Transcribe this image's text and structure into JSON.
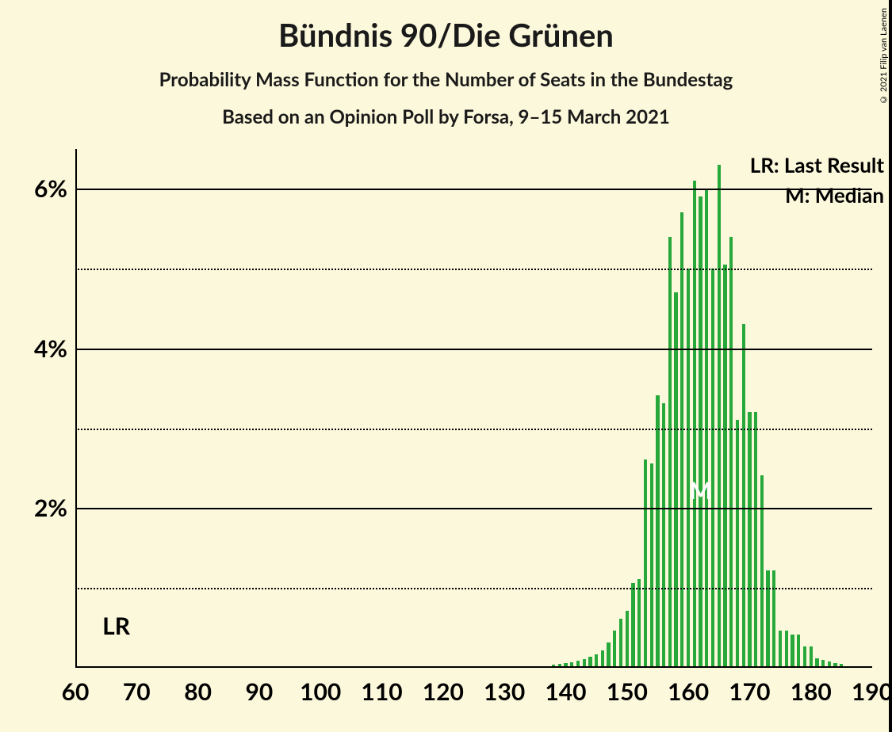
{
  "title": "Bündnis 90/Die Grünen",
  "subtitle": "Probability Mass Function for the Number of Seats in the Bundestag",
  "subtitle2": "Based on an Opinion Poll by Forsa, 9–15 March 2021",
  "legend_lr": "LR: Last Result",
  "legend_m": "M: Median",
  "lr_text": "LR",
  "m_text": "M",
  "copyright": "© 2021 Filip van Laenen",
  "chart": {
    "type": "bar",
    "background_color": "#fcf8db",
    "bar_color": "#26a83a",
    "axis_color": "#000000",
    "grid_major_color": "#000000",
    "grid_minor_style": "dotted",
    "xlim": [
      60,
      190
    ],
    "ylim": [
      0,
      6.5
    ],
    "x_ticks": [
      60,
      70,
      80,
      90,
      100,
      110,
      120,
      130,
      140,
      150,
      160,
      170,
      180,
      190
    ],
    "y_major_ticks": [
      2,
      4,
      6
    ],
    "y_minor_ticks": [
      1,
      3,
      5
    ],
    "y_tick_labels": [
      "2%",
      "4%",
      "6%"
    ],
    "lr_position": 67,
    "median_position": 162,
    "bar_width_ratio": 0.55,
    "bars": [
      {
        "x": 138,
        "y": 0.02
      },
      {
        "x": 139,
        "y": 0.03
      },
      {
        "x": 140,
        "y": 0.04
      },
      {
        "x": 141,
        "y": 0.05
      },
      {
        "x": 142,
        "y": 0.07
      },
      {
        "x": 143,
        "y": 0.09
      },
      {
        "x": 144,
        "y": 0.12
      },
      {
        "x": 145,
        "y": 0.15
      },
      {
        "x": 146,
        "y": 0.2
      },
      {
        "x": 147,
        "y": 0.3
      },
      {
        "x": 148,
        "y": 0.45
      },
      {
        "x": 149,
        "y": 0.6
      },
      {
        "x": 150,
        "y": 0.7
      },
      {
        "x": 151,
        "y": 1.05
      },
      {
        "x": 152,
        "y": 1.1
      },
      {
        "x": 153,
        "y": 2.6
      },
      {
        "x": 154,
        "y": 2.55
      },
      {
        "x": 155,
        "y": 3.4
      },
      {
        "x": 156,
        "y": 3.3
      },
      {
        "x": 157,
        "y": 5.4
      },
      {
        "x": 158,
        "y": 4.7
      },
      {
        "x": 159,
        "y": 5.7
      },
      {
        "x": 160,
        "y": 5.0
      },
      {
        "x": 161,
        "y": 6.1
      },
      {
        "x": 162,
        "y": 5.9
      },
      {
        "x": 163,
        "y": 6.0
      },
      {
        "x": 164,
        "y": 5.0
      },
      {
        "x": 165,
        "y": 6.3
      },
      {
        "x": 166,
        "y": 5.05
      },
      {
        "x": 167,
        "y": 5.4
      },
      {
        "x": 168,
        "y": 3.1
      },
      {
        "x": 169,
        "y": 4.3
      },
      {
        "x": 170,
        "y": 3.2
      },
      {
        "x": 171,
        "y": 3.2
      },
      {
        "x": 172,
        "y": 2.4
      },
      {
        "x": 173,
        "y": 1.2
      },
      {
        "x": 174,
        "y": 1.2
      },
      {
        "x": 175,
        "y": 0.45
      },
      {
        "x": 176,
        "y": 0.45
      },
      {
        "x": 177,
        "y": 0.4
      },
      {
        "x": 178,
        "y": 0.4
      },
      {
        "x": 179,
        "y": 0.25
      },
      {
        "x": 180,
        "y": 0.25
      },
      {
        "x": 181,
        "y": 0.1
      },
      {
        "x": 182,
        "y": 0.08
      },
      {
        "x": 183,
        "y": 0.06
      },
      {
        "x": 184,
        "y": 0.04
      },
      {
        "x": 185,
        "y": 0.03
      }
    ]
  }
}
